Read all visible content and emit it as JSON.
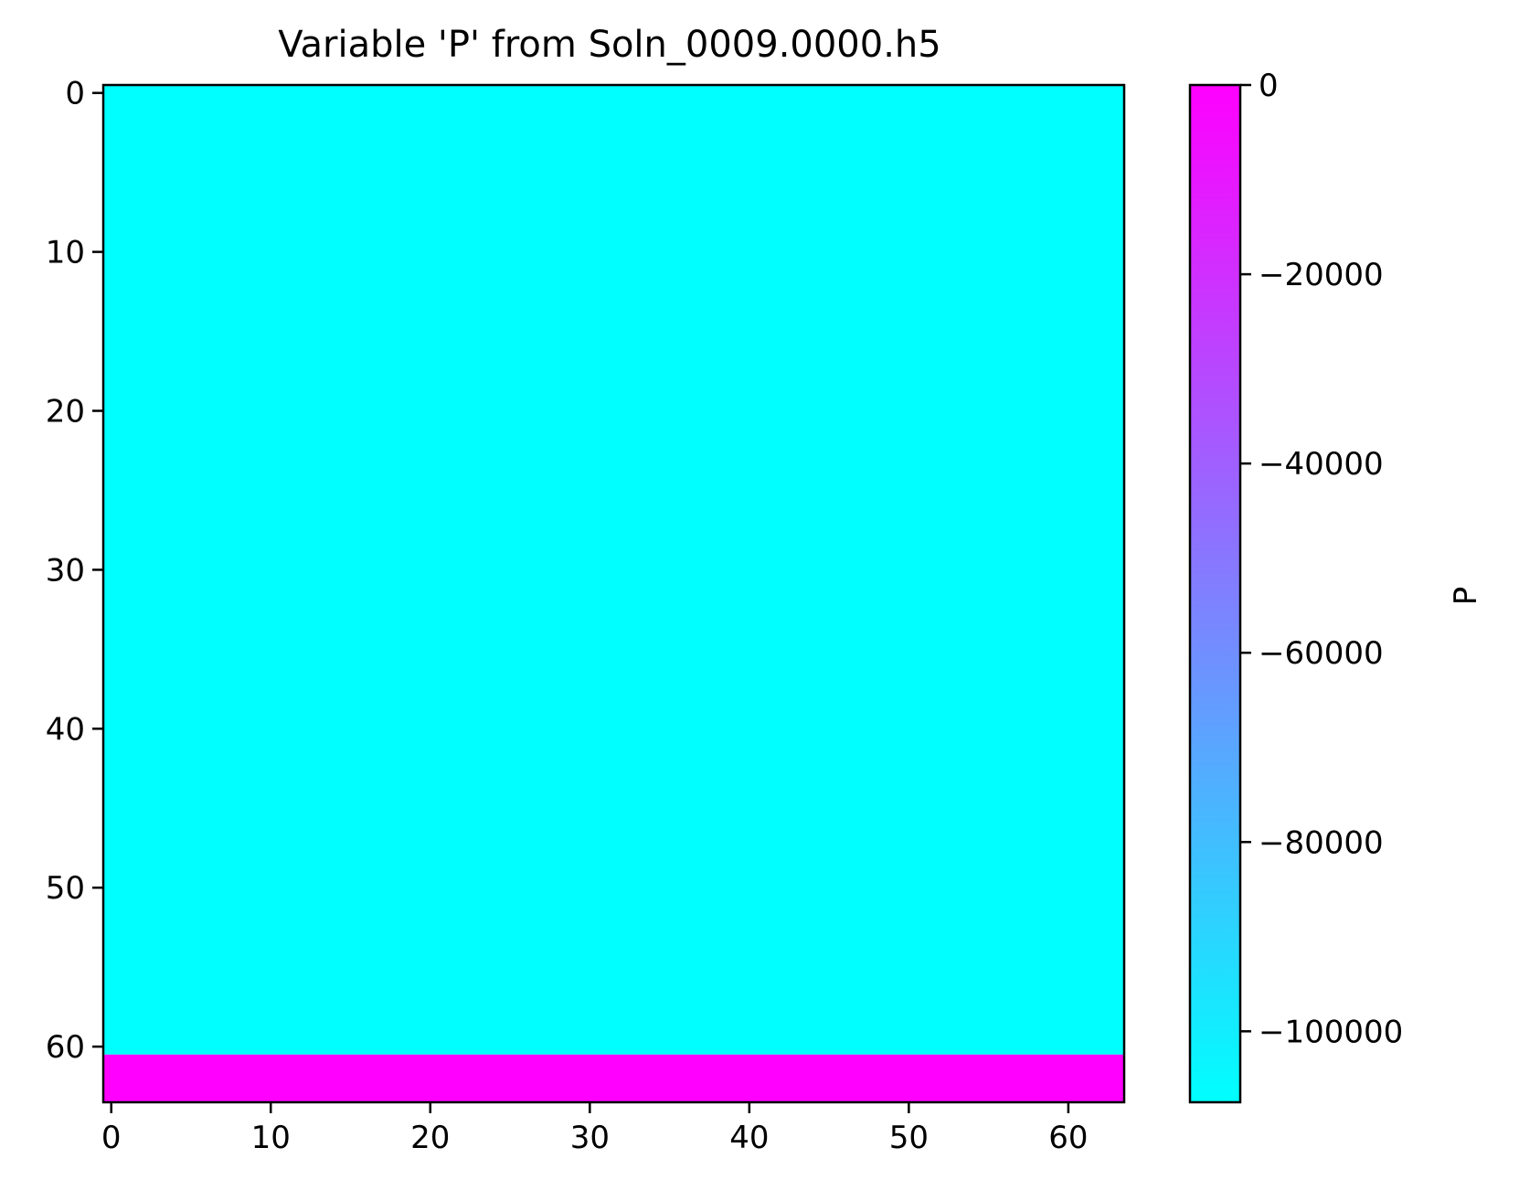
{
  "chart_data": {
    "type": "heatmap",
    "title": "Variable 'P' from Soln_0009.0000.h5",
    "xlim": [
      -0.5,
      63.5
    ],
    "ylim": [
      -0.5,
      63.5
    ],
    "y_inverted": true,
    "x_ticks": [
      0,
      10,
      20,
      30,
      40,
      50,
      60
    ],
    "y_ticks": [
      0,
      10,
      20,
      30,
      40,
      50,
      60
    ],
    "grid": false,
    "colormap": "cool",
    "colormap_stops": [
      "#00ffff",
      "#ff00ff"
    ],
    "colorbar": {
      "label": "P",
      "vmin": -107500,
      "vmax": 0,
      "ticks": [
        0,
        -20000,
        -40000,
        -60000,
        -80000,
        -100000
      ],
      "tick_labels": [
        "0",
        "−20000",
        "−40000",
        "−60000",
        "−80000",
        "−100000"
      ]
    },
    "regions": [
      {
        "row_start": 0,
        "row_end": 60,
        "col_start": 0,
        "col_end": 63,
        "value": -107500
      },
      {
        "row_start": 61,
        "row_end": 63,
        "col_start": 0,
        "col_end": 63,
        "value": 0
      }
    ]
  }
}
